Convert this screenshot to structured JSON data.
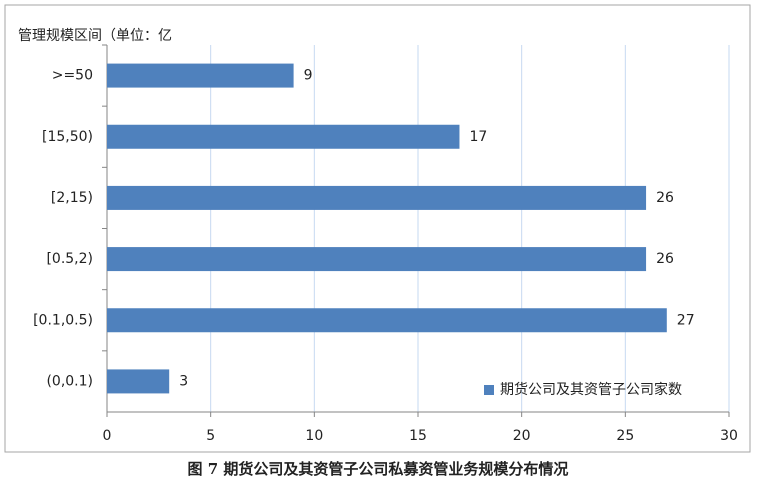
{
  "chart_data": {
    "type": "bar",
    "orientation": "horizontal",
    "y_label": "管理规模区间（单位：亿",
    "caption": "图 7 期货公司及其资管子公司私募资管业务规模分布情况",
    "categories": [
      ">=50",
      "[15,50)",
      "[2,15)",
      "[0.5,2)",
      "[0.1,0.5)",
      "(0,0.1)"
    ],
    "series": [
      {
        "name": "期货公司及其资管子公司家数",
        "color": "#4f81bd",
        "values": [
          9,
          17,
          26,
          26,
          27,
          3
        ]
      }
    ],
    "xlim": [
      0,
      30
    ],
    "xticks": [
      0,
      5,
      10,
      15,
      20,
      25,
      30
    ],
    "grid": true,
    "legend": "lower right"
  }
}
